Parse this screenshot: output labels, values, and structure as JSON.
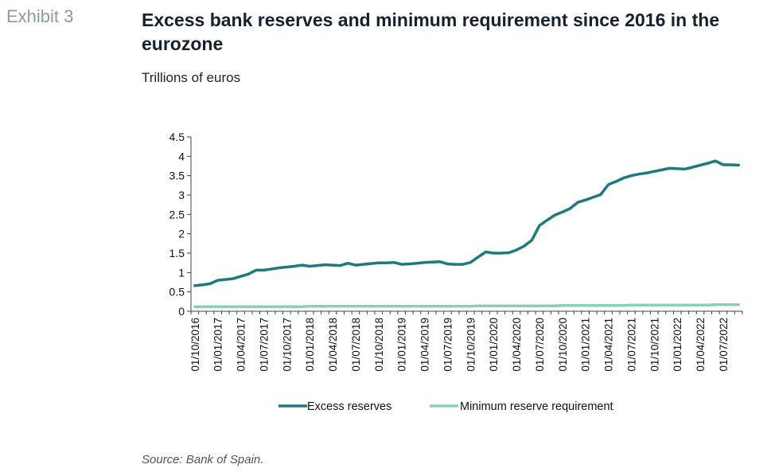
{
  "header": {
    "exhibit": "Exhibit 3",
    "title": "Excess bank reserves and minimum requirement since 2016 in the eurozone",
    "subtitle": "Trillions of euros"
  },
  "footer": {
    "source": "Source: Bank of Spain."
  },
  "colors": {
    "excess": "#1f7a80",
    "minimum": "#8ccfb8",
    "axis": "#404040"
  },
  "chart_data": {
    "type": "line",
    "title": "Excess bank reserves and minimum requirement since 2016 in the eurozone",
    "ylabel": "Trillions of euros",
    "ylim": [
      0,
      4.5
    ],
    "yticks": [
      "0",
      "0.5",
      "1",
      "1.5",
      "2",
      "2.5",
      "3",
      "3.5",
      "4",
      "4.5"
    ],
    "xtick_labels": [
      "01/10/2016",
      "01/01/2017",
      "01/04/2017",
      "01/07/2017",
      "01/10/2017",
      "01/01/2018",
      "01/04/2018",
      "01/07/2018",
      "01/10/2018",
      "01/01/2019",
      "01/04/2019",
      "01/07/2019",
      "01/10/2019",
      "01/01/2020",
      "01/04/2020",
      "01/07/2020",
      "01/10/2020",
      "01/01/2021",
      "01/04/2021",
      "01/07/2021",
      "01/10/2021",
      "01/01/2022",
      "01/04/2022",
      "01/07/2022"
    ],
    "series": [
      {
        "name": "Excess reserves",
        "color": "#1f7a80",
        "values": [
          0.66,
          0.68,
          0.71,
          0.8,
          0.82,
          0.84,
          0.9,
          0.96,
          1.06,
          1.06,
          1.09,
          1.12,
          1.14,
          1.16,
          1.19,
          1.16,
          1.18,
          1.2,
          1.19,
          1.18,
          1.24,
          1.19,
          1.21,
          1.23,
          1.25,
          1.25,
          1.26,
          1.21,
          1.22,
          1.24,
          1.26,
          1.27,
          1.28,
          1.22,
          1.21,
          1.21,
          1.26,
          1.4,
          1.53,
          1.5,
          1.5,
          1.51,
          1.58,
          1.68,
          1.83,
          2.21,
          2.35,
          2.48,
          2.56,
          2.65,
          2.81,
          2.87,
          2.94,
          3.01,
          3.27,
          3.35,
          3.44,
          3.5,
          3.54,
          3.57,
          3.61,
          3.65,
          3.69,
          3.68,
          3.67,
          3.72,
          3.77,
          3.82,
          3.88,
          3.78,
          3.78,
          3.77
        ]
      },
      {
        "name": "Minimum reserve requirement",
        "color": "#8ccfb8",
        "values": [
          0.12,
          0.12,
          0.12,
          0.12,
          0.12,
          0.12,
          0.12,
          0.12,
          0.12,
          0.12,
          0.12,
          0.12,
          0.12,
          0.12,
          0.12,
          0.13,
          0.13,
          0.13,
          0.13,
          0.13,
          0.13,
          0.13,
          0.13,
          0.13,
          0.13,
          0.13,
          0.13,
          0.13,
          0.13,
          0.13,
          0.13,
          0.13,
          0.13,
          0.13,
          0.13,
          0.13,
          0.13,
          0.14,
          0.14,
          0.14,
          0.14,
          0.14,
          0.14,
          0.14,
          0.14,
          0.14,
          0.14,
          0.14,
          0.15,
          0.15,
          0.15,
          0.15,
          0.15,
          0.15,
          0.15,
          0.15,
          0.15,
          0.16,
          0.16,
          0.16,
          0.16,
          0.16,
          0.16,
          0.16,
          0.16,
          0.16,
          0.16,
          0.16,
          0.17,
          0.17,
          0.17,
          0.17
        ]
      }
    ],
    "legend": [
      "Excess reserves",
      "Minimum reserve requirement"
    ],
    "legend_position": "bottom",
    "grid": false
  }
}
